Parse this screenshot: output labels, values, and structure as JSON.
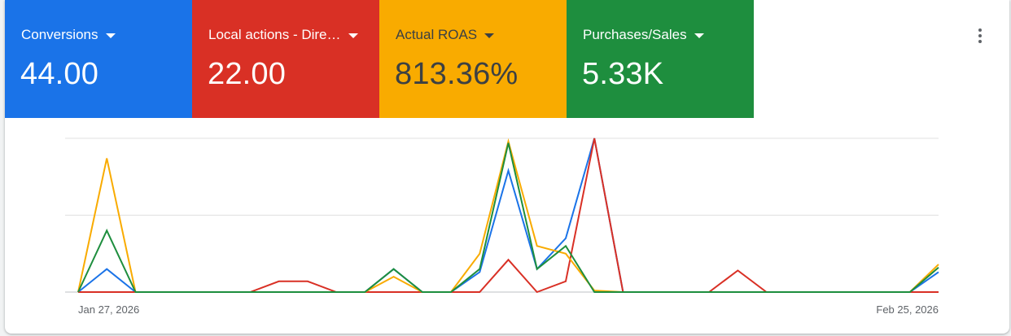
{
  "scorecards": [
    {
      "label": "Conversions",
      "value": "44.00",
      "bg": "#1a73e8",
      "fg": "#ffffff"
    },
    {
      "label": "Local actions - Dire…",
      "value": "22.00",
      "bg": "#d93025",
      "fg": "#ffffff"
    },
    {
      "label": "Actual ROAS",
      "value": "813.36%",
      "bg": "#f9ab00",
      "fg": "#3c4043"
    },
    {
      "label": "Purchases/Sales",
      "value": "5.33K",
      "bg": "#1e8e3e",
      "fg": "#ffffff"
    }
  ],
  "menu": {
    "icon": "more-vert-icon"
  },
  "chart_data": {
    "type": "line",
    "x_start": "Jan 27, 2026",
    "x_end": "Feb 25, 2026",
    "xticks": [
      "Jan 27, 2026",
      "Feb 25, 2026"
    ],
    "grid": true,
    "legend": "none",
    "series": [
      {
        "color": "#1a73e8",
        "values": [
          0,
          0.15,
          0,
          0,
          0,
          0,
          0,
          0,
          0,
          0,
          0,
          0.15,
          0,
          0,
          0.13,
          0.79,
          0.15,
          0.35,
          1.0,
          0,
          0,
          0,
          0,
          0,
          0,
          0,
          0,
          0,
          0,
          0,
          0.13
        ]
      },
      {
        "color": "#d93025",
        "values": [
          0,
          0,
          0,
          0,
          0,
          0,
          0,
          0.07,
          0.07,
          0,
          0,
          0,
          0,
          0,
          0,
          0.21,
          0,
          0.07,
          1.0,
          0,
          0,
          0,
          0,
          0.14,
          0,
          0,
          0,
          0,
          0,
          0,
          0
        ]
      },
      {
        "color": "#f9ab00",
        "values": [
          0,
          0.87,
          0,
          0,
          0,
          0,
          0,
          0,
          0,
          0,
          0,
          0.1,
          0,
          0,
          0.25,
          0.98,
          0.3,
          0.25,
          0.01,
          0,
          0,
          0,
          0,
          0,
          0,
          0,
          0,
          0,
          0,
          0,
          0.18
        ]
      },
      {
        "color": "#1e8e3e",
        "values": [
          0,
          0.4,
          0,
          0,
          0,
          0,
          0,
          0,
          0,
          0,
          0,
          0.15,
          0,
          0,
          0.15,
          0.97,
          0.15,
          0.3,
          0,
          0,
          0,
          0,
          0,
          0,
          0,
          0,
          0,
          0,
          0,
          0,
          0.16
        ]
      }
    ],
    "ylim": [
      0,
      1
    ]
  }
}
